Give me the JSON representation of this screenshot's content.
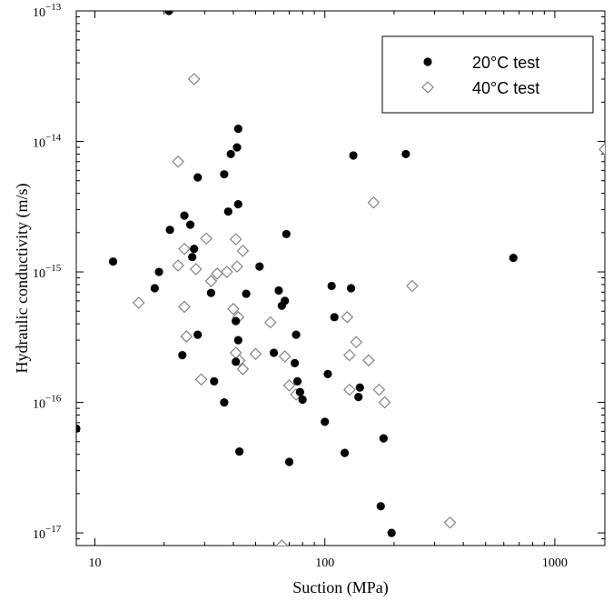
{
  "chart_data": {
    "type": "scatter",
    "x_scale": "log",
    "y_scale": "log",
    "xlim": [
      8.3,
      1650
    ],
    "ylim": [
      8e-18,
      1e-13
    ],
    "xlabel": "Suction (MPa)",
    "ylabel": "Hydraulic conductivity (m/s)",
    "x_ticks": [
      {
        "value": 10,
        "label": "10"
      },
      {
        "value": 100,
        "label": "100"
      },
      {
        "value": 1000,
        "label": "1000"
      }
    ],
    "y_ticks": [
      {
        "value": 1e-17,
        "base": "10",
        "exp": "−17"
      },
      {
        "value": 1e-16,
        "base": "10",
        "exp": "−16"
      },
      {
        "value": 1e-15,
        "base": "10",
        "exp": "−15"
      },
      {
        "value": 1e-14,
        "base": "10",
        "exp": "−14"
      },
      {
        "value": 1e-13,
        "base": "10",
        "exp": "−13"
      }
    ],
    "grid": false,
    "legend_position": "top-right",
    "series": [
      {
        "name": "20°C test",
        "marker": "filled-circle",
        "color": "#000000",
        "points": [
          [
            21,
            1e-13
          ],
          [
            8.3,
            6.3e-17
          ],
          [
            12,
            1.2e-15
          ],
          [
            18.2,
            7.5e-16
          ],
          [
            19,
            1e-15
          ],
          [
            21.2,
            2.1e-15
          ],
          [
            24.5,
            2.7e-15
          ],
          [
            26,
            2.3e-15
          ],
          [
            26.5,
            1.3e-15
          ],
          [
            27,
            1.5e-15
          ],
          [
            28,
            5.3e-15
          ],
          [
            28,
            3.3e-16
          ],
          [
            24,
            2.3e-16
          ],
          [
            32,
            6.9e-16
          ],
          [
            33,
            1.45e-16
          ],
          [
            36.5,
            5.6e-15
          ],
          [
            38,
            2.9e-15
          ],
          [
            39,
            8e-15
          ],
          [
            36.5,
            1e-16
          ],
          [
            41.5,
            9e-15
          ],
          [
            42,
            1.25e-14
          ],
          [
            42,
            3.3e-15
          ],
          [
            41,
            4.2e-16
          ],
          [
            42,
            3e-16
          ],
          [
            41,
            2.05e-16
          ],
          [
            42.5,
            4.2e-17
          ],
          [
            45.5,
            6.8e-16
          ],
          [
            52,
            1.1e-15
          ],
          [
            60,
            2.4e-16
          ],
          [
            63,
            7.2e-16
          ],
          [
            65,
            5.5e-16
          ],
          [
            67,
            6e-16
          ],
          [
            68,
            1.95e-15
          ],
          [
            70,
            3.5e-17
          ],
          [
            75,
            3.3e-16
          ],
          [
            74,
            2e-16
          ],
          [
            76,
            1.45e-16
          ],
          [
            78,
            1.2e-16
          ],
          [
            80,
            1.05e-16
          ],
          [
            100,
            7.1e-17
          ],
          [
            103,
            1.65e-16
          ],
          [
            107,
            7.8e-16
          ],
          [
            110,
            4.5e-16
          ],
          [
            122,
            4.1e-17
          ],
          [
            130,
            7.5e-16
          ],
          [
            133,
            7.8e-15
          ],
          [
            140,
            1.1e-16
          ],
          [
            142,
            1.3e-16
          ],
          [
            175,
            1.6e-17
          ],
          [
            180,
            5.3e-17
          ],
          [
            195,
            1e-17
          ],
          [
            225,
            8e-15
          ],
          [
            660,
            1.28e-15
          ]
        ]
      },
      {
        "name": "40°C test",
        "marker": "open-diamond",
        "color": "#777777",
        "points": [
          [
            27,
            3e-14
          ],
          [
            23,
            7e-15
          ],
          [
            23,
            1.12e-15
          ],
          [
            24.5,
            1.5e-15
          ],
          [
            27.5,
            1.05e-15
          ],
          [
            30.5,
            1.8e-15
          ],
          [
            32,
            8.5e-16
          ],
          [
            34,
            9.7e-16
          ],
          [
            37.5,
            1e-15
          ],
          [
            24.5,
            5.4e-16
          ],
          [
            25,
            3.2e-16
          ],
          [
            29,
            1.5e-16
          ],
          [
            40,
            5.2e-16
          ],
          [
            41,
            1.78e-15
          ],
          [
            41.5,
            1.1e-15
          ],
          [
            44,
            1.45e-15
          ],
          [
            42,
            4.5e-16
          ],
          [
            41,
            2.4e-16
          ],
          [
            42.5,
            2.1e-16
          ],
          [
            44,
            1.8e-16
          ],
          [
            50,
            2.35e-16
          ],
          [
            58,
            4.1e-16
          ],
          [
            67,
            2.25e-16
          ],
          [
            70,
            1.35e-16
          ],
          [
            75,
            1.15e-16
          ],
          [
            65,
            8e-18
          ],
          [
            15.5,
            5.8e-16
          ],
          [
            125,
            4.5e-16
          ],
          [
            128,
            2.3e-16
          ],
          [
            137,
            2.9e-16
          ],
          [
            128,
            1.25e-16
          ],
          [
            155,
            2.1e-16
          ],
          [
            163,
            3.4e-15
          ],
          [
            172,
            1.25e-16
          ],
          [
            182,
            1e-16
          ],
          [
            240,
            7.8e-16
          ],
          [
            350,
            1.2e-17
          ],
          [
            1650,
            8.7e-15
          ]
        ]
      }
    ]
  }
}
